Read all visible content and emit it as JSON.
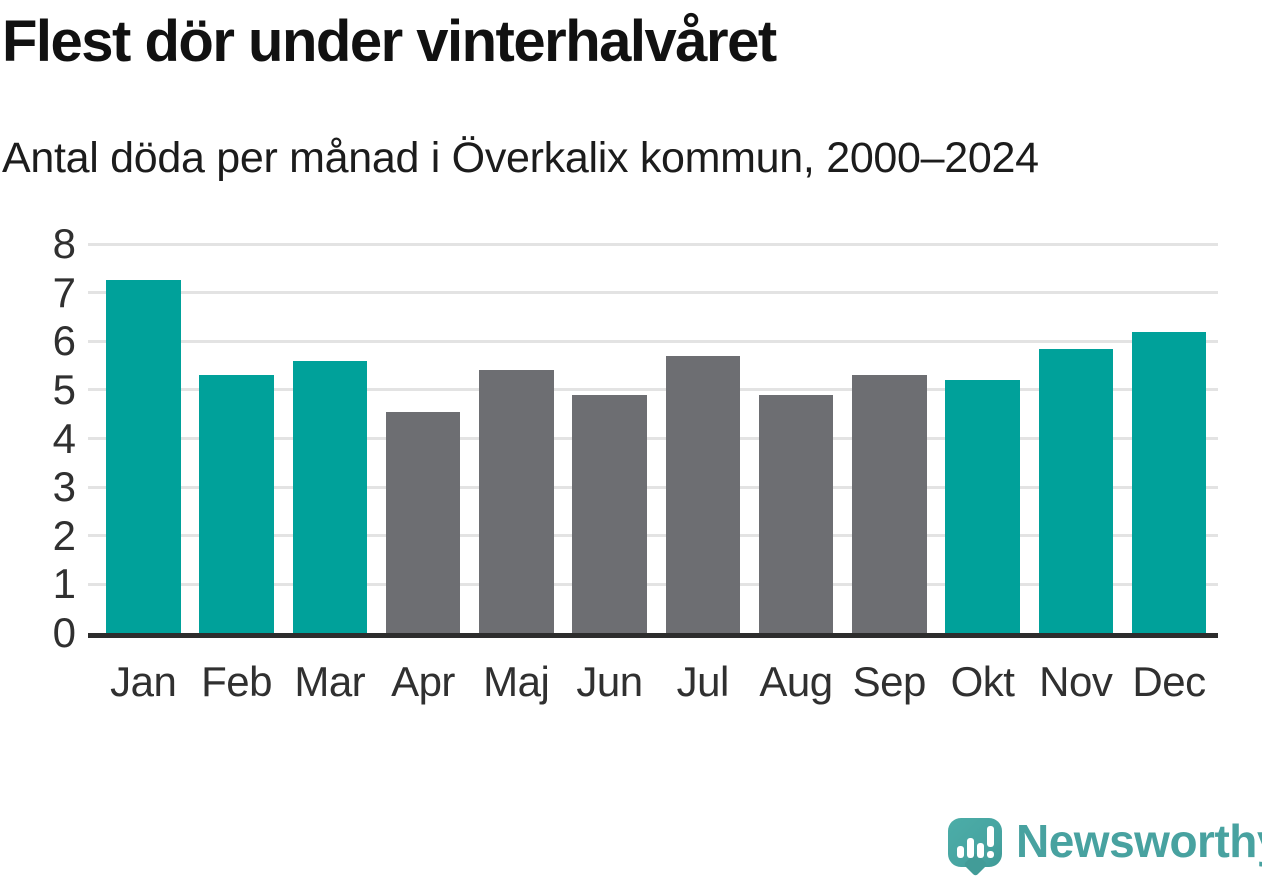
{
  "header": {
    "title": "Flest dör under vinterhalvåret",
    "subtitle": "Antal döda per månad i Överkalix kommun, 2000–2024"
  },
  "chart_data": {
    "type": "bar",
    "categories": [
      "Jan",
      "Feb",
      "Mar",
      "Apr",
      "Maj",
      "Jun",
      "Jul",
      "Aug",
      "Sep",
      "Okt",
      "Nov",
      "Dec"
    ],
    "values": [
      7.25,
      5.3,
      5.6,
      4.55,
      5.4,
      4.9,
      5.7,
      4.9,
      5.3,
      5.2,
      5.85,
      6.2
    ],
    "highlighted_categories": [
      "Jan",
      "Feb",
      "Mar",
      "Okt",
      "Nov",
      "Dec"
    ],
    "title": "Flest dör under vinterhalvåret",
    "subtitle": "Antal döda per månad i Överkalix kommun, 2000–2024",
    "xlabel": "",
    "ylabel": "",
    "ylim": [
      0,
      8
    ],
    "yticks": [
      0,
      1,
      2,
      3,
      4,
      5,
      6,
      7,
      8
    ],
    "grid": true,
    "legend": "none",
    "colors": {
      "highlight": "#00a19a",
      "default": "#6d6e72",
      "gridline": "#e3e3e3",
      "axis": "#2d2d2d",
      "tick_text": "#303030"
    }
  },
  "footer": {
    "brand": "Newsworthy",
    "brand_color": "#48a2a0",
    "logo_icon": "speech-bubble-bar-chart-exclamation-icon"
  }
}
